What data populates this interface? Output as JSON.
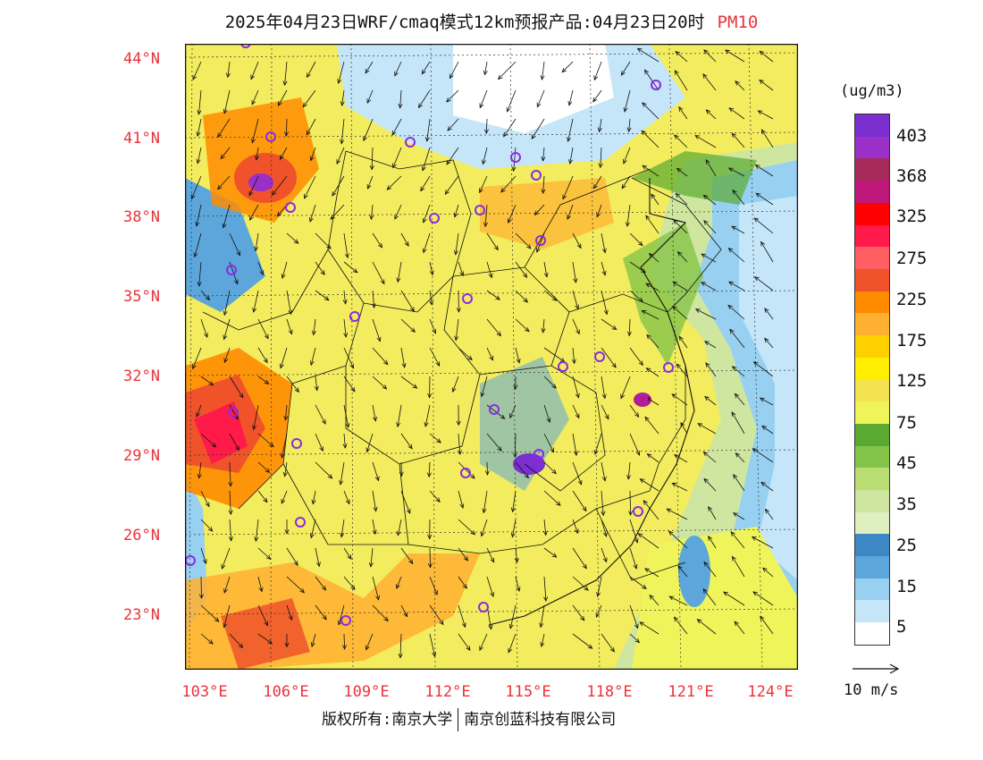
{
  "title": {
    "main": "2025年04月23日WRF/cmaq模式12km预报产品:04月23日20时",
    "pollutant": "PM10"
  },
  "legend": {
    "unit": "(ug/m3)",
    "labels": [
      "403",
      "368",
      "325",
      "275",
      "225",
      "175",
      "125",
      "75",
      "45",
      "35",
      "25",
      "15",
      "5"
    ],
    "colors": [
      "#7b2fd1",
      "#9b30c8",
      "#a52a5a",
      "#c0187a",
      "#ff0000",
      "#ff1a4a",
      "#ff5e62",
      "#f0522a",
      "#ff8c00",
      "#ffb030",
      "#ffd000",
      "#ffee00",
      "#f5e250",
      "#eef45a",
      "#5aaa32",
      "#84c449",
      "#b9dd72",
      "#cfe6a0",
      "#e0efc0",
      "#3d88c4",
      "#5ca6dc",
      "#97d0f0",
      "#c5e6f8",
      "#ffffff"
    ]
  },
  "axes": {
    "lat_labels": [
      "44°N",
      "41°N",
      "38°N",
      "35°N",
      "32°N",
      "29°N",
      "26°N",
      "23°N"
    ],
    "lon_labels": [
      "103°E",
      "106°E",
      "109°E",
      "112°E",
      "115°E",
      "118°E",
      "121°E",
      "124°E"
    ]
  },
  "wind_reference": {
    "label": "10 m/s"
  },
  "footer": {
    "left": "版权所有:南京大学",
    "right": "南京创蓝科技有限公司"
  },
  "colors": {
    "label_red": "#e8343a",
    "station_marker": "#8a2be2"
  },
  "icons": {
    "wind_arrow": "arrow-icon",
    "station": "circle-icon"
  }
}
